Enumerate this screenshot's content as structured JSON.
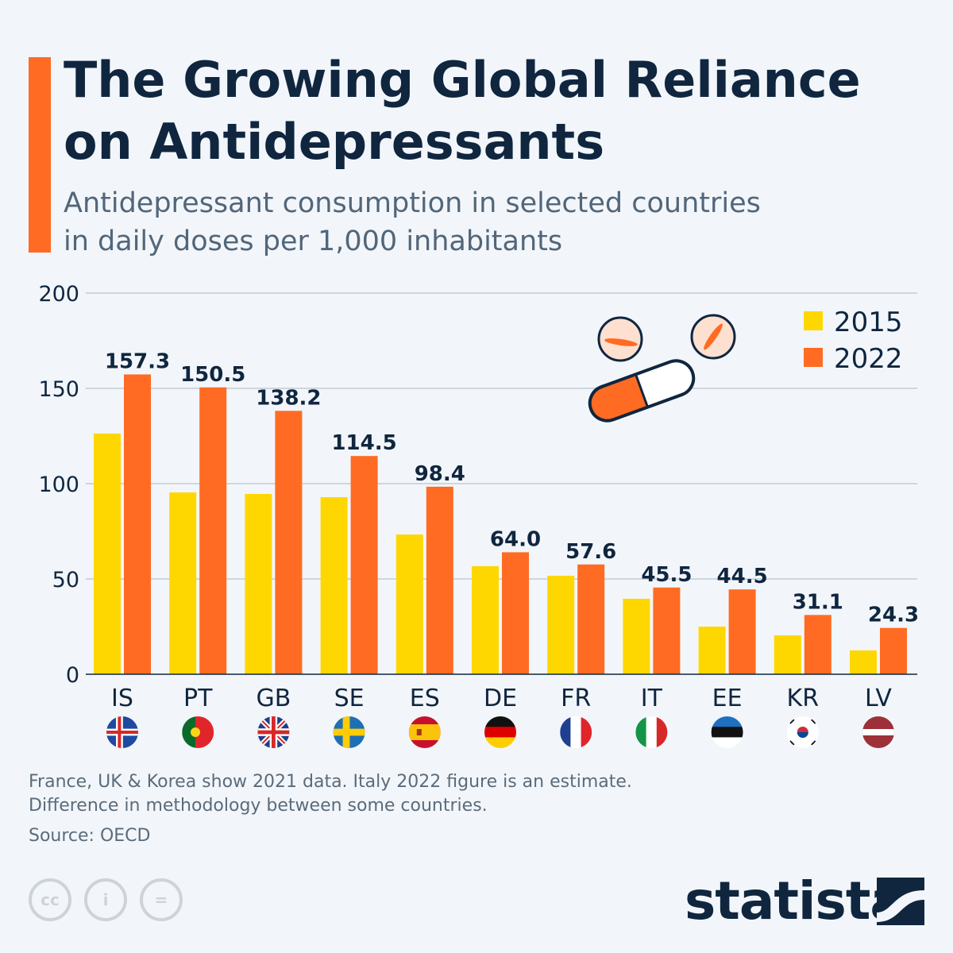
{
  "title": "The Growing Global Reliance on Antidepressants",
  "subtitle_line1": "Antidepressant consumption in selected countries",
  "subtitle_line2": "in daily doses per 1,000 inhabitants",
  "notes_line1": "France, UK & Korea show 2021 data. Italy 2022 figure is an estimate.",
  "notes_line2": "Difference in methodology between some countries.",
  "source": "Source: OECD",
  "logo": "statista",
  "license_icons": [
    "cc-icon",
    "attribution-icon",
    "no-derivatives-icon"
  ],
  "colors": {
    "s2015": "#ffd700",
    "s2022": "#ff6b22",
    "accent": "#ff6b22",
    "text": "#10263f"
  },
  "chart_data": {
    "type": "bar",
    "categories": [
      "IS",
      "PT",
      "GB",
      "SE",
      "ES",
      "DE",
      "FR",
      "IT",
      "EE",
      "KR",
      "LV"
    ],
    "series": [
      {
        "name": "2015",
        "values": [
          126.3,
          95.4,
          94.6,
          92.9,
          73.3,
          56.7,
          51.7,
          39.6,
          25.0,
          20.4,
          12.5
        ]
      },
      {
        "name": "2022",
        "values": [
          157.3,
          150.5,
          138.2,
          114.5,
          98.4,
          64.0,
          57.6,
          45.5,
          44.5,
          31.1,
          24.3
        ],
        "labels": [
          "157.3",
          "150.5",
          "138.2",
          "114.5",
          "98.4",
          "64.0",
          "57.6",
          "45.5",
          "44.5",
          "31.1",
          "24.3"
        ]
      }
    ],
    "ylim": [
      0,
      200
    ],
    "yticks": [
      0,
      50,
      100,
      150,
      200
    ],
    "grid": true,
    "legend": "top-right",
    "flags": [
      "iceland",
      "portugal",
      "uk",
      "sweden",
      "spain",
      "germany",
      "france",
      "italy",
      "estonia",
      "south-korea",
      "latvia"
    ]
  }
}
